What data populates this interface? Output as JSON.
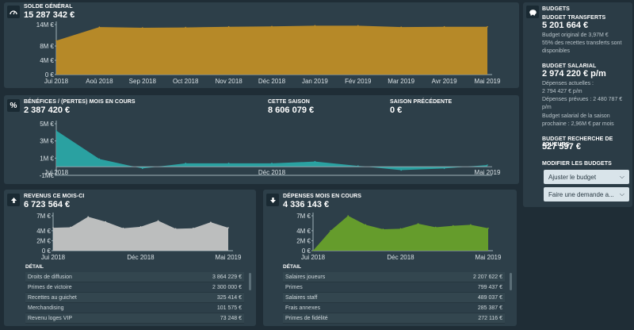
{
  "balance": {
    "title": "SOLDE GÉNÉRAL",
    "value": "15 287 342 €",
    "y_ticks": [
      "14M €",
      "8M €",
      "4M €",
      "0 €"
    ],
    "x_ticks": [
      "Jui 2018",
      "Aoû 2018",
      "Sep 2018",
      "Oct 2018",
      "Nov 2018",
      "Déc 2018",
      "Jan 2019",
      "Fév 2019",
      "Mar 2019",
      "Avr 2019",
      "Mai 2019"
    ]
  },
  "profit": {
    "title": "BÉNÉFICES / (PERTES) MOIS EN COURS",
    "value": "2 387 420 €",
    "season_title": "CETTE SAISON",
    "season_value": "8 606 079 €",
    "prev_title": "SAISON PRÉCÉDENTE",
    "prev_value": "0 €",
    "y_ticks": [
      "5M €",
      "3M €",
      "1M €",
      "-1M€"
    ],
    "x_ticks": [
      "Jui 2018",
      "Déc 2018",
      "Mai 2019"
    ]
  },
  "revenue": {
    "title": "REVENUS CE MOIS-CI",
    "value": "6 723 564 €",
    "y_ticks": [
      "7M €",
      "4M €",
      "2M €",
      "0 €"
    ],
    "x_ticks": [
      "Jui 2018",
      "Déc 2018",
      "Mai 2019"
    ],
    "detail_label": "DÉTAIL",
    "rows": [
      {
        "label": "Droits de diffusion",
        "value": "3 864 229 €"
      },
      {
        "label": "Primes de victoire",
        "value": "2 300 000 €"
      },
      {
        "label": "Recettes au guichet",
        "value": "325 414 €"
      },
      {
        "label": "Merchandising",
        "value": "101 575 €"
      },
      {
        "label": "Revenu loges VIP",
        "value": "73 248 €"
      }
    ]
  },
  "expenses": {
    "title": "DÉPENSES MOIS EN COURS",
    "value": "4 336 143 €",
    "y_ticks": [
      "7M €",
      "4M €",
      "2M €",
      "0 €"
    ],
    "x_ticks": [
      "Jui 2018",
      "Déc 2018",
      "Mai 2019"
    ],
    "detail_label": "DÉTAIL",
    "rows": [
      {
        "label": "Salaires joueurs",
        "value": "2 207 622 €"
      },
      {
        "label": "Primes",
        "value": "799 437 €"
      },
      {
        "label": "Salaires staff",
        "value": "489 037 €"
      },
      {
        "label": "Frais annexes",
        "value": "285 387 €"
      },
      {
        "label": "Primes de fidélité",
        "value": "272 116 €"
      }
    ]
  },
  "budgets": {
    "title": "BUDGETS",
    "transfer_title": "BUDGET TRANSFERTS",
    "transfer_value": "5 201 664 €",
    "transfer_note1": "Budget original de 3,97M €",
    "transfer_note2": "55% des recettes transferts sont disponibles",
    "salary_title": "BUDGET SALARIAL",
    "salary_value": "2 974 220 € p/m",
    "salary_current_label": "Dépenses actuelles :",
    "salary_current_value": "2 794 427 € p/m",
    "salary_planned_label": "Dépenses prévues : 2 480 787 €",
    "salary_planned_unit": "p/m",
    "salary_next": "Budget salarial de la saison prochaine : 2,96M € par mois",
    "scouting_title": "BUDGET RECHERCHE DE JOUEURS",
    "scouting_value": "527 597 €",
    "modify_title": "MODIFIER LES BUDGETS",
    "adjust_button": "Ajuster le budget",
    "request_button": "Faire une demande a..."
  },
  "chart_data": [
    {
      "type": "area",
      "title": "SOLDE GÉNÉRAL",
      "x": [
        "Jui 2018",
        "Aoû 2018",
        "Sep 2018",
        "Oct 2018",
        "Nov 2018",
        "Déc 2018",
        "Jan 2019",
        "Fév 2019",
        "Mar 2019",
        "Avr 2019",
        "Mai 2019"
      ],
      "values": [
        9.5,
        13.3,
        13.1,
        13.2,
        13.4,
        13.5,
        13.7,
        13.7,
        13.3,
        13.4,
        13.4
      ],
      "ylim": [
        0,
        14
      ],
      "color": "#c28f26"
    },
    {
      "type": "area",
      "title": "BÉNÉFICES / (PERTES) MOIS EN COURS",
      "x": [
        "Jui 2018",
        "Aoû 2018",
        "Sep 2018",
        "Oct 2018",
        "Nov 2018",
        "Déc 2018",
        "Jan 2019",
        "Fév 2019",
        "Mar 2019",
        "Avr 2019",
        "Mai 2019"
      ],
      "values": [
        4.2,
        0.9,
        -0.2,
        0.4,
        0.4,
        0.4,
        0.6,
        0.1,
        -0.4,
        -0.2,
        0.2
      ],
      "ylim": [
        -1,
        5
      ],
      "color": "#2aa9a9"
    },
    {
      "type": "area",
      "title": "REVENUS CE MOIS-CI",
      "x": [
        "Jui 2018",
        "Aoû 2018",
        "Sep 2018",
        "Oct 2018",
        "Nov 2018",
        "Déc 2018",
        "Jan 2019",
        "Fév 2019",
        "Mar 2019",
        "Avr 2019",
        "Mai 2019"
      ],
      "values": [
        4.6,
        4.7,
        6.8,
        5.8,
        4.5,
        4.8,
        6.0,
        4.4,
        4.5,
        5.7,
        4.6
      ],
      "ylim": [
        0,
        7
      ],
      "color": "#c9c9c9"
    },
    {
      "type": "area",
      "title": "DÉPENSES MOIS EN COURS",
      "x": [
        "Jui 2018",
        "Aoû 2018",
        "Sep 2018",
        "Oct 2018",
        "Nov 2018",
        "Déc 2018",
        "Jan 2019",
        "Fév 2019",
        "Mar 2019",
        "Avr 2019",
        "Mai 2019"
      ],
      "values": [
        0,
        4.0,
        7.0,
        5.2,
        4.3,
        4.4,
        5.4,
        4.7,
        5.0,
        5.2,
        4.5
      ],
      "ylim": [
        0,
        7
      ],
      "color": "#6aa42a"
    }
  ]
}
